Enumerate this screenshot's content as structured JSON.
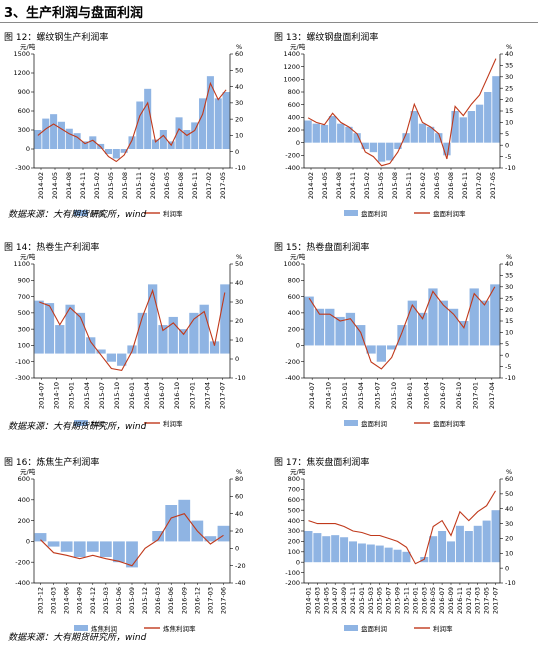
{
  "section_title": "3、生产利润与盘面利润",
  "source_text": "数据来源：大有期货研究所，wind",
  "colors": {
    "bar": "#8fb4e3",
    "line": "#c0391b",
    "axis": "#000000"
  },
  "charts": [
    {
      "title": "图 12：螺纹钢生产利润率",
      "left_unit": "元/吨",
      "right_unit": "%",
      "left_ticks": [
        1500,
        1200,
        900,
        600,
        300,
        0,
        -300
      ],
      "right_ticks": [
        60,
        50,
        40,
        30,
        20,
        10,
        0,
        -10
      ],
      "x_ticks": [
        "2014-02",
        "2014-05",
        "2014-08",
        "2014-11",
        "2015-02",
        "2015-05",
        "2015-08",
        "2015-11",
        "2016-02",
        "2016-05",
        "2016-08",
        "2016-11",
        "2017-02",
        "2017-05"
      ],
      "legend_bar": "利润",
      "legend_line": "利润率",
      "bar_label": "利润",
      "line_label": "利润率"
    },
    {
      "title": "图 13：螺纹钢盘面利润率",
      "left_unit": "元/吨",
      "right_unit": "%",
      "left_ticks": [
        1400,
        1200,
        1000,
        800,
        600,
        400,
        200,
        0,
        -200,
        -400
      ],
      "right_ticks": [
        40,
        35,
        30,
        25,
        20,
        15,
        10,
        5,
        0,
        -5,
        -10
      ],
      "x_ticks": [
        "2014-02",
        "2014-05",
        "2014-08",
        "2014-11",
        "2015-02",
        "2015-05",
        "2015-08",
        "2015-11",
        "2016-02",
        "2016-05",
        "2016-08",
        "2016-11",
        "2017-02",
        "2017-05"
      ],
      "legend_bar": "盘面利润",
      "legend_line": "盘面利润率",
      "bar_label": "盘面利润",
      "line_label": "盘面利润率"
    },
    {
      "title": "图 14：热卷生产利润率",
      "left_unit": "元/吨",
      "right_unit": "%",
      "left_ticks": [
        1100,
        900,
        700,
        500,
        300,
        100,
        -100,
        -300
      ],
      "right_ticks": [
        50,
        40,
        30,
        20,
        10,
        0,
        -10
      ],
      "x_ticks": [
        "2014-07",
        "2014-10",
        "2015-01",
        "2015-04",
        "2015-07",
        "2015-10",
        "2016-01",
        "2016-04",
        "2016-07",
        "2016-10",
        "2017-01",
        "2017-04",
        "2017-07"
      ],
      "legend_bar": "利润",
      "legend_line": "利润率",
      "bar_label": "利润",
      "line_label": "利润率"
    },
    {
      "title": "图 15：热卷盘面利润率",
      "left_unit": "元/吨",
      "right_unit": "%",
      "left_ticks": [
        1000,
        800,
        600,
        400,
        200,
        0,
        -200,
        -400
      ],
      "right_ticks": [
        40,
        35,
        30,
        25,
        20,
        15,
        10,
        5,
        0,
        -5,
        -10
      ],
      "x_ticks": [
        "2014-07",
        "2014-10",
        "2015-01",
        "2015-04",
        "2015-07",
        "2015-10",
        "2016-01",
        "2016-04",
        "2016-07",
        "2016-10",
        "2017-01",
        "2017-04"
      ],
      "legend_bar": "盘面利润",
      "legend_line": "盘面利润率",
      "bar_label": "盘面利润",
      "line_label": "盘面利润率"
    },
    {
      "title": "图 16：炼焦生产利润率",
      "left_unit": "元/吨",
      "right_unit": "%",
      "left_ticks": [
        600,
        400,
        200,
        0,
        -200,
        -400
      ],
      "right_ticks": [
        80,
        60,
        40,
        20,
        0,
        -20,
        -40
      ],
      "x_ticks": [
        "2013-12",
        "2014-03",
        "2014-06",
        "2014-09",
        "2014-12",
        "2015-03",
        "2015-06",
        "2015-09",
        "2015-12",
        "2016-03",
        "2016-06",
        "2016-09",
        "2016-12",
        "2017-03",
        "2017-06"
      ],
      "legend_bar": "炼焦利润",
      "legend_line": "炼焦利润率",
      "bar_label": "炼焦利润",
      "line_label": "炼焦利润率"
    },
    {
      "title": "图 17：焦炭盘面利润率",
      "left_unit": "元/吨",
      "right_unit": "%",
      "left_ticks": [
        800,
        700,
        600,
        500,
        400,
        300,
        200,
        100,
        0,
        -100,
        -200
      ],
      "right_ticks": [
        60,
        50,
        40,
        30,
        20,
        10,
        0,
        -10
      ],
      "x_ticks": [
        "2014-01",
        "2014-03",
        "2014-05",
        "2014-07",
        "2014-09",
        "2014-11",
        "2015-01",
        "2015-03",
        "2015-05",
        "2015-07",
        "2015-09",
        "2015-11",
        "2016-01",
        "2016-03",
        "2016-05",
        "2016-07",
        "2016-09",
        "2016-11",
        "2017-01",
        "2017-03",
        "2017-05",
        "2017-07"
      ],
      "legend_bar": "盘面利润",
      "legend_line": "利润率",
      "bar_label": "盘面利润",
      "line_label": "利润率"
    }
  ],
  "chart_data": [
    {
      "type": "bar+line",
      "title": "图 12：螺纹钢生产利润率",
      "ylabel": "元/吨",
      "y2label": "%",
      "ylim": [
        -300,
        1500
      ],
      "y2lim": [
        -10,
        60
      ],
      "x": [
        "2014-02",
        "2014-04",
        "2014-06",
        "2014-08",
        "2014-10",
        "2014-12",
        "2015-02",
        "2015-04",
        "2015-06",
        "2015-08",
        "2015-10",
        "2015-12",
        "2016-02",
        "2016-04",
        "2016-05",
        "2016-06",
        "2016-08",
        "2016-10",
        "2016-12",
        "2017-01",
        "2017-02",
        "2017-04",
        "2017-05",
        "2017-06",
        "2017-07"
      ],
      "series": [
        {
          "name": "利润",
          "kind": "bar",
          "values": [
            300,
            480,
            550,
            430,
            320,
            250,
            120,
            200,
            80,
            -80,
            -150,
            -60,
            200,
            750,
            950,
            150,
            300,
            120,
            500,
            300,
            420,
            800,
            1150,
            800,
            900
          ]
        },
        {
          "name": "利润率",
          "kind": "line",
          "values": [
            10,
            14,
            17,
            14,
            11,
            9,
            5,
            7,
            3,
            -3,
            -6,
            -2,
            7,
            22,
            30,
            6,
            10,
            4,
            14,
            10,
            13,
            23,
            42,
            32,
            38
          ]
        }
      ]
    },
    {
      "type": "bar+line",
      "title": "图 13：螺纹钢盘面利润率",
      "ylabel": "元/吨",
      "y2label": "%",
      "ylim": [
        -400,
        1400
      ],
      "y2lim": [
        -10,
        40
      ],
      "x": [
        "2014-02",
        "2014-04",
        "2014-06",
        "2014-08",
        "2014-10",
        "2014-12",
        "2015-02",
        "2015-04",
        "2015-06",
        "2015-08",
        "2015-10",
        "2015-12",
        "2016-02",
        "2016-04",
        "2016-06",
        "2016-08",
        "2016-10",
        "2016-12",
        "2017-01",
        "2017-02",
        "2017-04",
        "2017-05",
        "2017-06",
        "2017-07"
      ],
      "series": [
        {
          "name": "盘面利润",
          "kind": "bar",
          "values": [
            350,
            300,
            280,
            420,
            300,
            250,
            150,
            -100,
            -150,
            -300,
            -280,
            -100,
            150,
            500,
            300,
            250,
            150,
            -200,
            500,
            400,
            500,
            600,
            800,
            1050
          ]
        },
        {
          "name": "盘面利润率",
          "kind": "line",
          "values": [
            12,
            10,
            9,
            14,
            10,
            8,
            5,
            -3,
            -5,
            -9,
            -8,
            -3,
            5,
            18,
            10,
            8,
            5,
            -6,
            17,
            13,
            18,
            22,
            30,
            38
          ]
        }
      ]
    },
    {
      "type": "bar+line",
      "title": "图 14：热卷生产利润率",
      "ylabel": "元/吨",
      "y2label": "%",
      "ylim": [
        -300,
        1100
      ],
      "y2lim": [
        -10,
        50
      ],
      "x": [
        "2014-07",
        "2014-09",
        "2014-11",
        "2015-01",
        "2015-03",
        "2015-05",
        "2015-07",
        "2015-09",
        "2015-11",
        "2016-01",
        "2016-03",
        "2016-05",
        "2016-07",
        "2016-09",
        "2016-11",
        "2017-01",
        "2017-03",
        "2017-05",
        "2017-07"
      ],
      "series": [
        {
          "name": "利润",
          "kind": "bar",
          "values": [
            650,
            620,
            350,
            600,
            500,
            200,
            50,
            -100,
            -150,
            100,
            500,
            850,
            350,
            450,
            300,
            500,
            600,
            150,
            850
          ]
        },
        {
          "name": "利润率",
          "kind": "line",
          "values": [
            30,
            28,
            18,
            27,
            22,
            9,
            2,
            -5,
            -6,
            4,
            22,
            36,
            15,
            19,
            13,
            21,
            25,
            7,
            35
          ]
        }
      ]
    },
    {
      "type": "bar+line",
      "title": "图 15：热卷盘面利润率",
      "ylabel": "元/吨",
      "y2label": "%",
      "ylim": [
        -400,
        1000
      ],
      "y2lim": [
        -10,
        40
      ],
      "x": [
        "2014-07",
        "2014-09",
        "2014-11",
        "2015-01",
        "2015-03",
        "2015-05",
        "2015-07",
        "2015-09",
        "2015-11",
        "2016-01",
        "2016-03",
        "2016-05",
        "2016-07",
        "2016-09",
        "2016-11",
        "2017-01",
        "2017-03",
        "2017-05",
        "2017-07"
      ],
      "series": [
        {
          "name": "盘面利润",
          "kind": "bar",
          "values": [
            600,
            450,
            450,
            350,
            400,
            250,
            -100,
            -200,
            -50,
            250,
            550,
            400,
            700,
            550,
            450,
            300,
            700,
            550,
            750
          ]
        },
        {
          "name": "盘面利润率",
          "kind": "line",
          "values": [
            25,
            18,
            18,
            15,
            16,
            10,
            -3,
            -6,
            -1,
            10,
            22,
            16,
            28,
            22,
            18,
            12,
            27,
            22,
            30
          ]
        }
      ]
    },
    {
      "type": "bar+line",
      "title": "图 16：炼焦生产利润率",
      "ylabel": "元/吨",
      "y2label": "%",
      "ylim": [
        -400,
        600
      ],
      "y2lim": [
        -40,
        80
      ],
      "x": [
        "2013-12",
        "2014-03",
        "2014-06",
        "2014-09",
        "2014-12",
        "2015-03",
        "2015-06",
        "2015-09",
        "2015-12",
        "2016-03",
        "2016-06",
        "2016-09",
        "2016-12",
        "2017-03",
        "2017-06"
      ],
      "series": [
        {
          "name": "炼焦利润",
          "kind": "bar",
          "values": [
            80,
            -50,
            -100,
            -150,
            -100,
            -150,
            -200,
            -250,
            0,
            100,
            350,
            400,
            200,
            50,
            150
          ]
        },
        {
          "name": "炼焦利润率",
          "kind": "line",
          "values": [
            10,
            -5,
            -8,
            -12,
            -8,
            -12,
            -15,
            -20,
            0,
            10,
            35,
            40,
            20,
            5,
            15
          ]
        }
      ]
    },
    {
      "type": "bar+line",
      "title": "图 17：焦炭盘面利润率",
      "ylabel": "元/吨",
      "y2label": "%",
      "ylim": [
        -200,
        800
      ],
      "y2lim": [
        -10,
        60
      ],
      "x": [
        "2014-01",
        "2014-03",
        "2014-05",
        "2014-07",
        "2014-09",
        "2014-11",
        "2015-01",
        "2015-03",
        "2015-05",
        "2015-07",
        "2015-09",
        "2015-11",
        "2016-01",
        "2016-03",
        "2016-05",
        "2016-07",
        "2016-09",
        "2016-11",
        "2017-01",
        "2017-03",
        "2017-05",
        "2017-07"
      ],
      "series": [
        {
          "name": "盘面利润",
          "kind": "bar",
          "values": [
            300,
            280,
            250,
            260,
            240,
            200,
            180,
            170,
            160,
            140,
            120,
            100,
            0,
            50,
            250,
            300,
            200,
            350,
            300,
            350,
            400,
            500
          ]
        },
        {
          "name": "利润率",
          "kind": "line",
          "values": [
            32,
            30,
            30,
            30,
            28,
            25,
            24,
            22,
            22,
            20,
            18,
            14,
            3,
            6,
            28,
            32,
            22,
            38,
            32,
            38,
            42,
            52
          ]
        }
      ]
    }
  ]
}
